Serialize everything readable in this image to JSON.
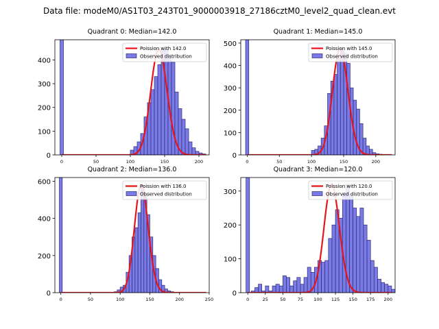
{
  "figure": {
    "suptitle": "Data file: modeM0/AS1T03_243T01_9000003918_27186cztM0_level2_quad_clean.evt"
  },
  "colors": {
    "bar_fill": "#7b7be8",
    "bar_edge": "#2a2a70",
    "curve": "#e8141a"
  },
  "chart_data": [
    {
      "type": "bar",
      "title": "Quadrant 0: Median=142.0",
      "xlabel": "",
      "ylabel": "",
      "xlim": [
        -10,
        215
      ],
      "ylim": [
        0,
        485
      ],
      "xticks": [
        "0",
        "50",
        "100",
        "150",
        "200"
      ],
      "xtick_values": [
        0,
        50,
        100,
        150,
        200
      ],
      "yticks": [
        "0",
        "100",
        "200",
        "300",
        "400"
      ],
      "ytick_values": [
        0,
        100,
        200,
        300,
        400
      ],
      "bin_width": 5,
      "spike": {
        "x": 0,
        "value": 485
      },
      "bins_start": 100,
      "values": [
        20,
        35,
        55,
        90,
        160,
        220,
        275,
        330,
        380,
        445,
        445,
        420,
        390,
        265,
        195,
        150,
        110,
        55,
        30,
        15,
        8,
        4
      ],
      "poisson_mean": 142.0,
      "legend": {
        "curve": "Poission with 142.0",
        "bars": "Observed distribution"
      }
    },
    {
      "type": "bar",
      "title": "Quadrant 1: Median=145.0",
      "xlabel": "",
      "ylabel": "",
      "xlim": [
        -10,
        230
      ],
      "ylim": [
        0,
        515
      ],
      "xticks": [
        "0",
        "50",
        "100",
        "150",
        "200"
      ],
      "xtick_values": [
        0,
        50,
        100,
        150,
        200
      ],
      "yticks": [
        "0",
        "100",
        "200",
        "300",
        "400",
        "500"
      ],
      "ytick_values": [
        0,
        100,
        200,
        300,
        400,
        500
      ],
      "bin_width": 5,
      "spike": {
        "x": 0,
        "value": 515
      },
      "bins_start": 100,
      "values": [
        20,
        25,
        40,
        75,
        130,
        275,
        330,
        360,
        430,
        475,
        455,
        410,
        300,
        245,
        205,
        140,
        75,
        40,
        25,
        10,
        5,
        3
      ],
      "poisson_mean": 145.0,
      "legend": {
        "curve": "Poission with 145.0",
        "bars": "Observed distribution"
      }
    },
    {
      "type": "bar",
      "title": "Quadrant 2: Median=136.0",
      "xlabel": "",
      "ylabel": "",
      "xlim": [
        -10,
        250
      ],
      "ylim": [
        0,
        620
      ],
      "xticks": [
        "0",
        "50",
        "100",
        "150",
        "200",
        "250"
      ],
      "xtick_values": [
        0,
        50,
        100,
        150,
        200,
        250
      ],
      "yticks": [
        "0",
        "200",
        "400",
        "600"
      ],
      "ytick_values": [
        0,
        200,
        400,
        600
      ],
      "bin_width": 5,
      "spike": {
        "x": 0,
        "value": 620
      },
      "bins_start": 90,
      "values": [
        5,
        15,
        30,
        40,
        110,
        200,
        300,
        350,
        430,
        580,
        530,
        420,
        300,
        200,
        130,
        70,
        40,
        20,
        10,
        5
      ],
      "poisson_mean": 136.0,
      "legend": {
        "curve": "Poission with 136.0",
        "bars": "Observed distribution"
      }
    },
    {
      "type": "bar",
      "title": "Quadrant 3: Median=120.0",
      "xlabel": "",
      "ylabel": "",
      "xlim": [
        -10,
        210
      ],
      "ylim": [
        0,
        340
      ],
      "xticks": [
        "0",
        "25",
        "50",
        "75",
        "100",
        "125",
        "150",
        "175",
        "200"
      ],
      "xtick_values": [
        0,
        25,
        50,
        75,
        100,
        125,
        150,
        175,
        200
      ],
      "yticks": [
        "0",
        "100",
        "200",
        "300"
      ],
      "ytick_values": [
        0,
        100,
        200,
        300
      ],
      "bin_width": 5,
      "spike": {
        "x": 0,
        "value": 340
      },
      "bins_start": 5,
      "values": [
        5,
        15,
        25,
        5,
        20,
        5,
        20,
        25,
        20,
        50,
        45,
        20,
        35,
        45,
        25,
        45,
        75,
        60,
        75,
        95,
        90,
        95,
        160,
        200,
        245,
        220,
        295,
        320,
        290,
        250,
        225,
        250,
        200,
        155,
        95,
        75,
        40,
        30,
        25,
        20,
        10,
        5,
        2,
        1
      ],
      "poisson_mean": 120.0,
      "legend": {
        "curve": "Poission with 120.0",
        "bars": "Observed distribution"
      }
    }
  ]
}
